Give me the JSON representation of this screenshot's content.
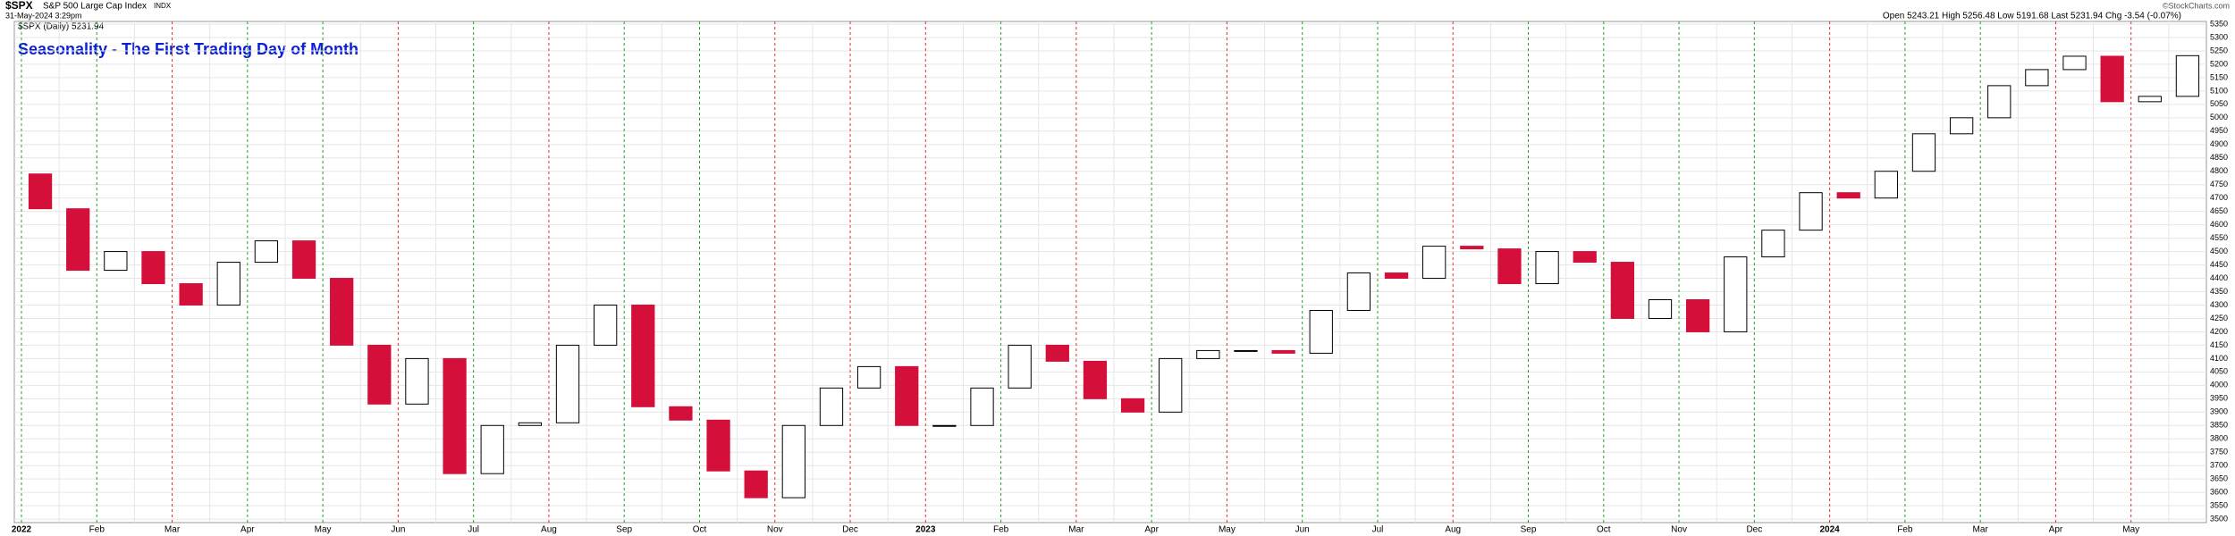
{
  "chart_data": {
    "type": "candlestick",
    "symbol": "$SPX",
    "name": "S&P 500 Large Cap Index",
    "exchange": "INDX",
    "timestamp": "31-May-2024 3:29pm",
    "credit": "©StockCharts.com",
    "quote": "Open 5243.21 High 5256.48 Low 5191.68 Last 5231.94 Chg -3.54 (-0.07%)",
    "legend": "$SPX (Daily) 5231.94",
    "annotation": "Seasonality - The First Trading Day of Month",
    "annotation_color": "#0a1fd6",
    "up_color": "#000000",
    "down_color": "#d4103a",
    "months": [
      "2022",
      "Feb",
      "Mar",
      "Apr",
      "May",
      "Jun",
      "Jul",
      "Aug",
      "Sep",
      "Oct",
      "Nov",
      "Dec",
      "2023",
      "Feb",
      "Mar",
      "Apr",
      "May",
      "Jun",
      "Jul",
      "Aug",
      "Sep",
      "Oct",
      "Nov",
      "Dec",
      "2024",
      "Feb",
      "Mar",
      "Apr",
      "May"
    ],
    "month_line_colors": [
      "#22a022",
      "#22a022",
      "#e03030",
      "#22a022",
      "#22a022",
      "#e03030",
      "#22a022",
      "#e03030",
      "#22a022",
      "#22a022",
      "#e03030",
      "#e03030",
      "#e03030",
      "#22a022",
      "#e03030",
      "#22a022",
      "#e03030",
      "#22a022",
      "#22a022",
      "#e03030",
      "#22a022",
      "#22a022",
      "#22a022",
      "#22a022",
      "#e03030",
      "#22a022",
      "#22a022",
      "#e03030",
      "#e03030"
    ],
    "open": [
      4790,
      4660,
      4430,
      4500,
      4380,
      4300,
      4460,
      4540,
      4400,
      4150,
      3930,
      4100,
      3670,
      3850,
      3860,
      4150,
      4300,
      3920,
      3870,
      3680,
      3580,
      3850,
      3990,
      4070,
      3850,
      3850,
      3990,
      4150,
      4090,
      3950,
      3900,
      4100,
      4130,
      4130,
      4120,
      4280,
      4420,
      4400,
      4520,
      4510,
      4380,
      4500,
      4460,
      4250,
      4320,
      4200,
      4480,
      4580,
      4720,
      4700,
      4800,
      4940,
      5000,
      5120,
      5180,
      5230,
      5060,
      5080
    ],
    "close": [
      4660,
      4430,
      4500,
      4380,
      4300,
      4460,
      4540,
      4400,
      4150,
      3930,
      4100,
      3670,
      3850,
      3860,
      4150,
      4300,
      3920,
      3870,
      3680,
      3580,
      3850,
      3990,
      4070,
      3850,
      3850,
      3990,
      4150,
      4090,
      3950,
      3900,
      4100,
      4130,
      4130,
      4120,
      4280,
      4420,
      4400,
      4520,
      4510,
      4380,
      4500,
      4460,
      4250,
      4320,
      4200,
      4480,
      4580,
      4720,
      4700,
      4800,
      4940,
      5000,
      5120,
      5180,
      5230,
      5060,
      5080,
      5232
    ],
    "ylim": [
      3487,
      5360
    ],
    "yticks": [
      3500,
      3550,
      3600,
      3650,
      3700,
      3750,
      3800,
      3850,
      3900,
      3950,
      4000,
      4050,
      4100,
      4150,
      4200,
      4250,
      4300,
      4350,
      4400,
      4450,
      4500,
      4550,
      4600,
      4650,
      4700,
      4750,
      4800,
      4850,
      4900,
      4950,
      5000,
      5050,
      5100,
      5150,
      5200,
      5250,
      5300,
      5350
    ],
    "grid": true
  }
}
